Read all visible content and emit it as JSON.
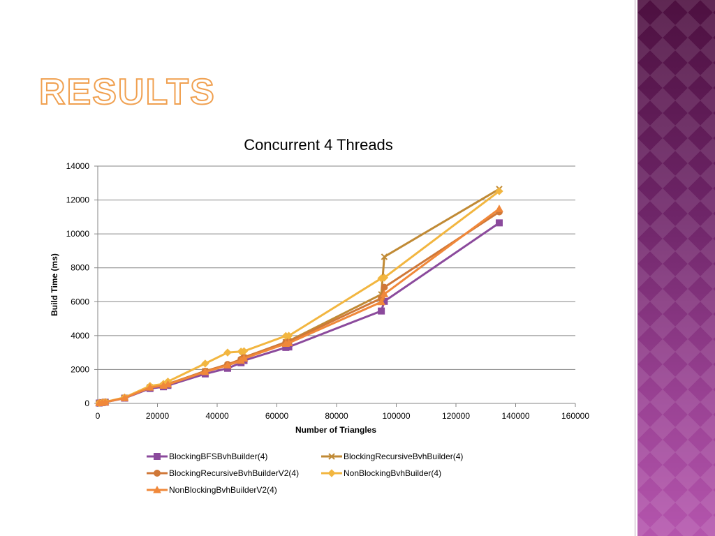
{
  "slide": {
    "title": "RESULTS",
    "colors": {
      "title_fill": "#ffffff",
      "title_outline": "#f0a050",
      "side_panel": "#7a2f78"
    }
  },
  "chart_data": {
    "type": "line",
    "title": "Concurrent 4 Threads",
    "xlabel": "Number of Triangles",
    "ylabel": "Build Time (ms)",
    "xlim": [
      0,
      160000
    ],
    "ylim": [
      0,
      14000
    ],
    "x_ticks": [
      "0",
      "20000",
      "40000",
      "60000",
      "80000",
      "100000",
      "120000",
      "140000",
      "160000"
    ],
    "y_ticks": [
      "0",
      "2000",
      "4000",
      "6000",
      "8000",
      "10000",
      "12000",
      "14000"
    ],
    "grid": "horizontal",
    "legend_position": "bottom",
    "series": [
      {
        "name": "BlockingBFSBvhBuilder(4)",
        "color": "#8b4a9c",
        "marker": "square",
        "points": [
          [
            500,
            20
          ],
          [
            1500,
            45
          ],
          [
            2500,
            70
          ],
          [
            9000,
            310
          ],
          [
            17500,
            880
          ],
          [
            22000,
            980
          ],
          [
            23500,
            1060
          ],
          [
            36000,
            1740
          ],
          [
            43500,
            2070
          ],
          [
            48000,
            2400
          ],
          [
            49000,
            2530
          ],
          [
            63000,
            3300
          ],
          [
            64000,
            3330
          ],
          [
            95000,
            5450
          ],
          [
            96000,
            6020
          ],
          [
            134500,
            10650
          ]
        ]
      },
      {
        "name": "BlockingRecursiveBvhBuilder(4)",
        "color": "#c08a35",
        "marker": "x",
        "points": [
          [
            500,
            22
          ],
          [
            1500,
            50
          ],
          [
            2500,
            78
          ],
          [
            9000,
            330
          ],
          [
            17500,
            960
          ],
          [
            22000,
            1060
          ],
          [
            23500,
            1130
          ],
          [
            36000,
            1910
          ],
          [
            43500,
            2260
          ],
          [
            48000,
            2560
          ],
          [
            49000,
            2700
          ],
          [
            63000,
            3620
          ],
          [
            64000,
            3680
          ],
          [
            95000,
            6430
          ],
          [
            96000,
            8650
          ],
          [
            134500,
            12650
          ]
        ]
      },
      {
        "name": "BlockingRecursiveBvhBuilderV2(4)",
        "color": "#d07838",
        "marker": "circle",
        "points": [
          [
            500,
            21
          ],
          [
            1500,
            48
          ],
          [
            2500,
            75
          ],
          [
            9000,
            330
          ],
          [
            17500,
            950
          ],
          [
            22000,
            1080
          ],
          [
            23500,
            1150
          ],
          [
            36000,
            1900
          ],
          [
            43500,
            2300
          ],
          [
            48000,
            2600
          ],
          [
            49000,
            2720
          ],
          [
            63000,
            3600
          ],
          [
            64000,
            3650
          ],
          [
            95000,
            6200
          ],
          [
            96000,
            6850
          ],
          [
            134500,
            11300
          ]
        ]
      },
      {
        "name": "NonBlockingBvhBuilder(4)",
        "color": "#f2b640",
        "marker": "diamond",
        "points": [
          [
            500,
            25
          ],
          [
            1500,
            55
          ],
          [
            2500,
            85
          ],
          [
            9000,
            350
          ],
          [
            17500,
            1030
          ],
          [
            22000,
            1150
          ],
          [
            23500,
            1290
          ],
          [
            36000,
            2350
          ],
          [
            43500,
            3000
          ],
          [
            48000,
            3060
          ],
          [
            49000,
            3080
          ],
          [
            63000,
            3980
          ],
          [
            64000,
            3990
          ],
          [
            95000,
            7380
          ],
          [
            96000,
            7420
          ],
          [
            134500,
            12520
          ]
        ]
      },
      {
        "name": "NonBlockingBvhBuilderV2(4)",
        "color": "#f0883a",
        "marker": "triangle",
        "points": [
          [
            500,
            20
          ],
          [
            1500,
            46
          ],
          [
            2500,
            72
          ],
          [
            9000,
            320
          ],
          [
            17500,
            940
          ],
          [
            22000,
            1050
          ],
          [
            23500,
            1120
          ],
          [
            36000,
            1860
          ],
          [
            43500,
            2250
          ],
          [
            48000,
            2520
          ],
          [
            49000,
            2650
          ],
          [
            63000,
            3520
          ],
          [
            64000,
            3560
          ],
          [
            95000,
            5980
          ],
          [
            96000,
            6450
          ],
          [
            134500,
            11480
          ]
        ]
      }
    ]
  }
}
